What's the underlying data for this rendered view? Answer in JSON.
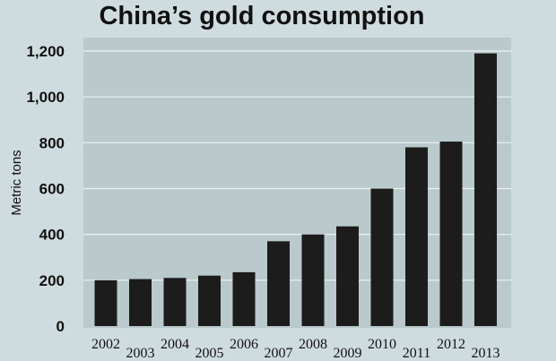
{
  "colors": {
    "page_background": "#cfdcdf",
    "plot_background": "#b9c9cc",
    "bar": "#1c1c1c",
    "grid": "#eef3f4",
    "text": "#111111"
  },
  "chart_data": {
    "type": "bar",
    "title": "China’s gold consumption",
    "xlabel": "",
    "ylabel": "Metric tons",
    "categories": [
      "2002",
      "2003",
      "2004",
      "2005",
      "2006",
      "2007",
      "2008",
      "2009",
      "2010",
      "2011",
      "2012",
      "2013"
    ],
    "values": [
      200,
      205,
      210,
      220,
      235,
      370,
      400,
      435,
      600,
      780,
      805,
      1190
    ],
    "ylim": [
      0,
      1200
    ],
    "yticks": [
      0,
      200,
      400,
      600,
      800,
      1000,
      1200
    ],
    "ytick_labels": [
      "0",
      "200",
      "400",
      "600",
      "800",
      "1,000",
      "1,200"
    ],
    "grid": true,
    "legend": "none"
  }
}
